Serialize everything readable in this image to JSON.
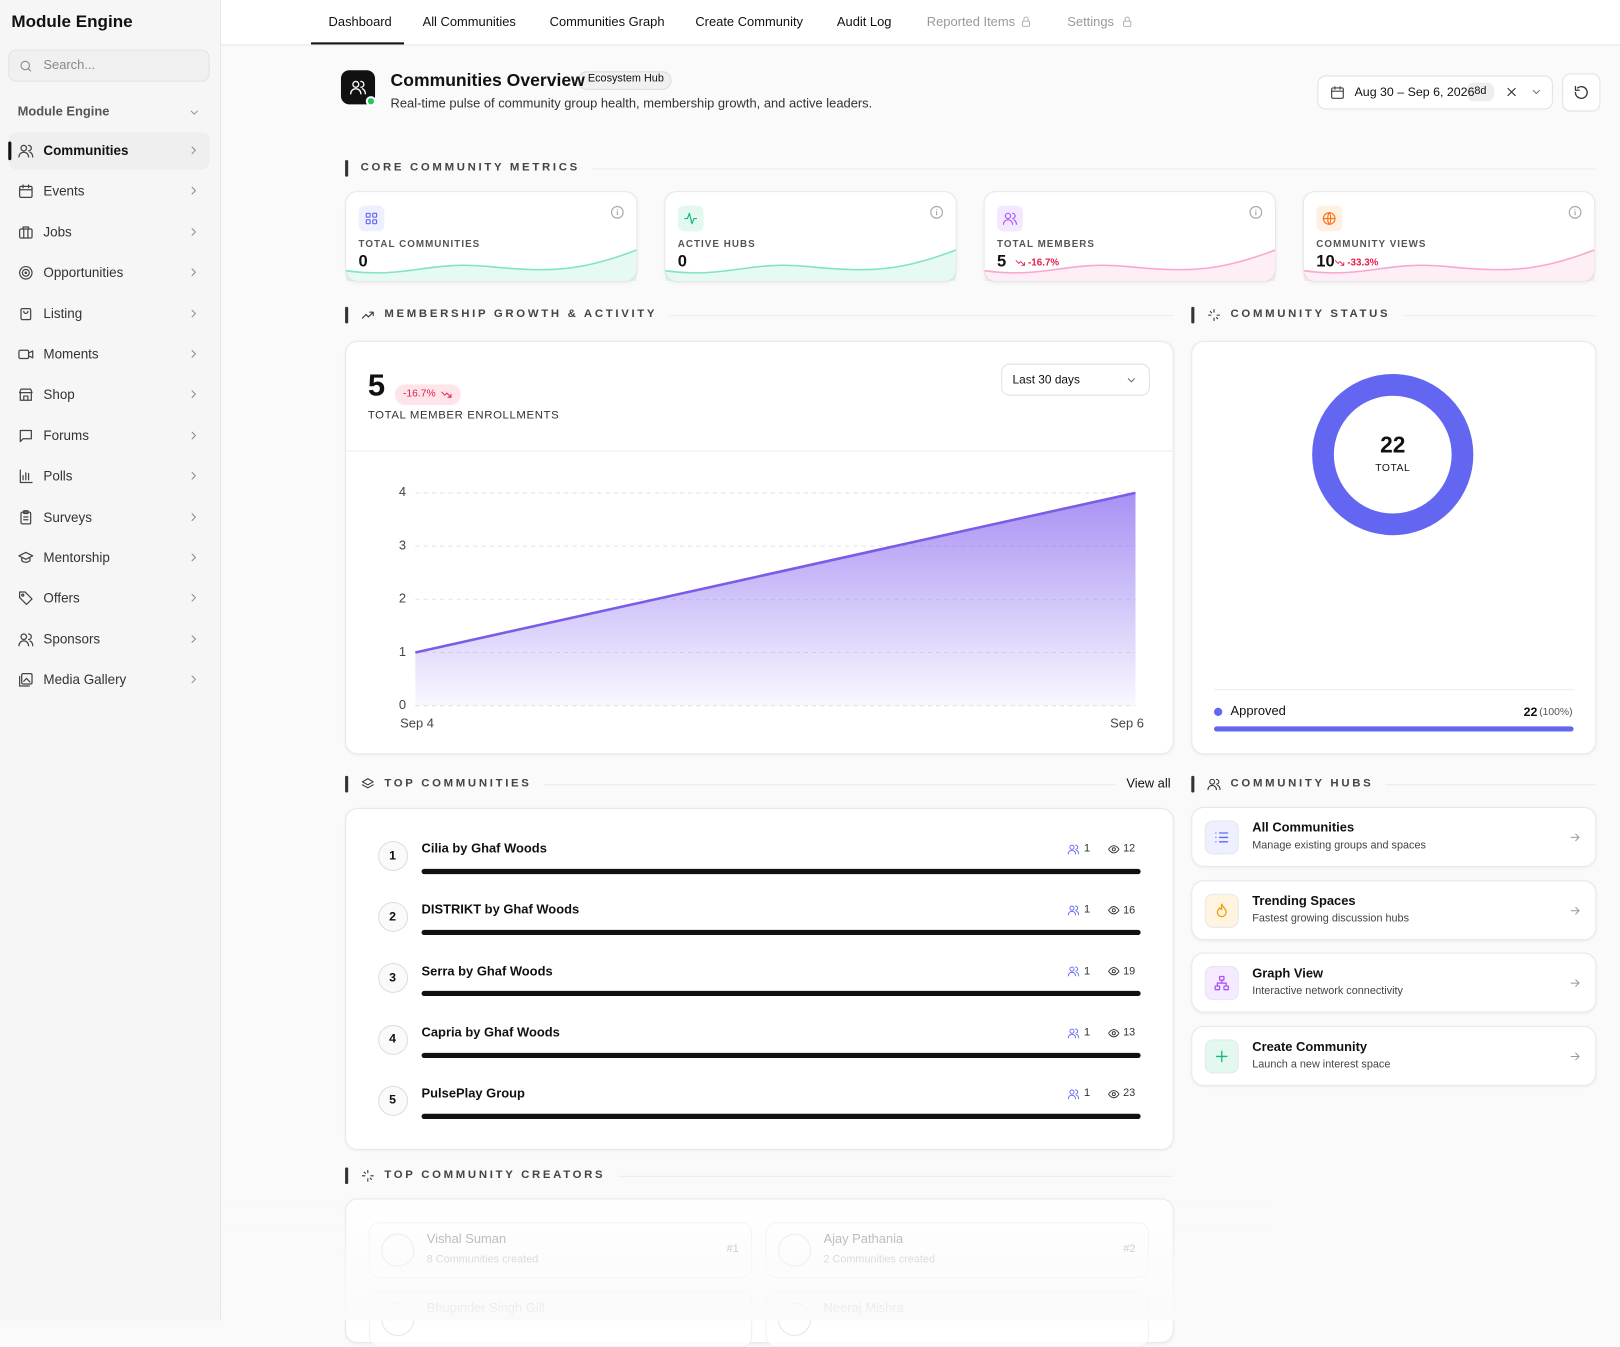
{
  "sidebar": {
    "brand": "Module Engine",
    "search_placeholder": "Search...",
    "section": "Module Engine",
    "items": [
      "Communities",
      "Events",
      "Jobs",
      "Opportunities",
      "Listing",
      "Moments",
      "Shop",
      "Forums",
      "Polls",
      "Surveys",
      "Mentorship",
      "Offers",
      "Sponsors",
      "Media Gallery"
    ]
  },
  "tabs": [
    "Dashboard",
    "All Communities",
    "Communities Graph",
    "Create Community",
    "Audit Log",
    "Reported Items",
    "Settings"
  ],
  "header": {
    "title": "Communities Overview",
    "badge": "Ecosystem Hub",
    "subtitle": "Real-time pulse of community group health, membership growth, and active leaders.",
    "date_range": "Aug 30 – Sep 6, 2026",
    "date_days": "8d"
  },
  "metrics": {
    "heading": "CORE COMMUNITY METRICS",
    "cards": [
      {
        "label": "TOTAL COMMUNITIES",
        "value": 0
      },
      {
        "label": "ACTIVE HUBS",
        "value": 0
      },
      {
        "label": "TOTAL MEMBERS",
        "value": 5,
        "change": "-16.7%"
      },
      {
        "label": "COMMUNITY VIEWS",
        "value": 10,
        "change": "-33.3%"
      }
    ]
  },
  "growth": {
    "heading": "MEMBERSHIP GROWTH & ACTIVITY",
    "total": 5,
    "change": "-16.7%",
    "caption": "TOTAL MEMBER ENROLLMENTS",
    "range": "Last 30 days",
    "chart": {
      "type": "area",
      "x": [
        "Sep 4",
        "Sep 6"
      ],
      "values": [
        1,
        4
      ],
      "ylim": [
        0,
        4
      ],
      "yticks": [
        0,
        1,
        2,
        3,
        4
      ],
      "color": "#7c5ce6",
      "grid": true
    }
  },
  "status": {
    "heading": "COMMUNITY STATUS",
    "total": 22,
    "total_label": "TOTAL",
    "items": [
      {
        "name": "Approved",
        "value": 22,
        "share": "(100%)",
        "color": "#6366f1"
      }
    ]
  },
  "top_communities": {
    "heading": "TOP COMMUNITIES",
    "view_all": "View all",
    "rows": [
      {
        "rank": 1,
        "name": "Cilia by Ghaf Woods",
        "members": 1,
        "views": 12
      },
      {
        "rank": 2,
        "name": "DISTRIKT by Ghaf Woods",
        "members": 1,
        "views": 16
      },
      {
        "rank": 3,
        "name": "Serra by Ghaf Woods",
        "members": 1,
        "views": 19
      },
      {
        "rank": 4,
        "name": "Capria by Ghaf Woods",
        "members": 1,
        "views": 13
      },
      {
        "rank": 5,
        "name": "PulsePlay Group",
        "members": 1,
        "views": 23
      }
    ]
  },
  "hubs": {
    "heading": "COMMUNITY HUBS",
    "items": [
      {
        "title": "All Communities",
        "desc": "Manage existing groups and spaces"
      },
      {
        "title": "Trending Spaces",
        "desc": "Fastest growing discussion hubs"
      },
      {
        "title": "Graph View",
        "desc": "Interactive network connectivity"
      },
      {
        "title": "Create Community",
        "desc": "Launch a new interest space"
      }
    ]
  },
  "creators": {
    "heading": "TOP COMMUNITY CREATORS",
    "items": [
      {
        "name": "Vishal Suman",
        "detail": "8 Communities created",
        "rank": "#1"
      },
      {
        "name": "Ajay Pathania",
        "detail": "2 Communities created",
        "rank": "#2"
      },
      {
        "name": "Bhupinder Singh Gill"
      },
      {
        "name": "Neeraj Mishra"
      }
    ]
  }
}
